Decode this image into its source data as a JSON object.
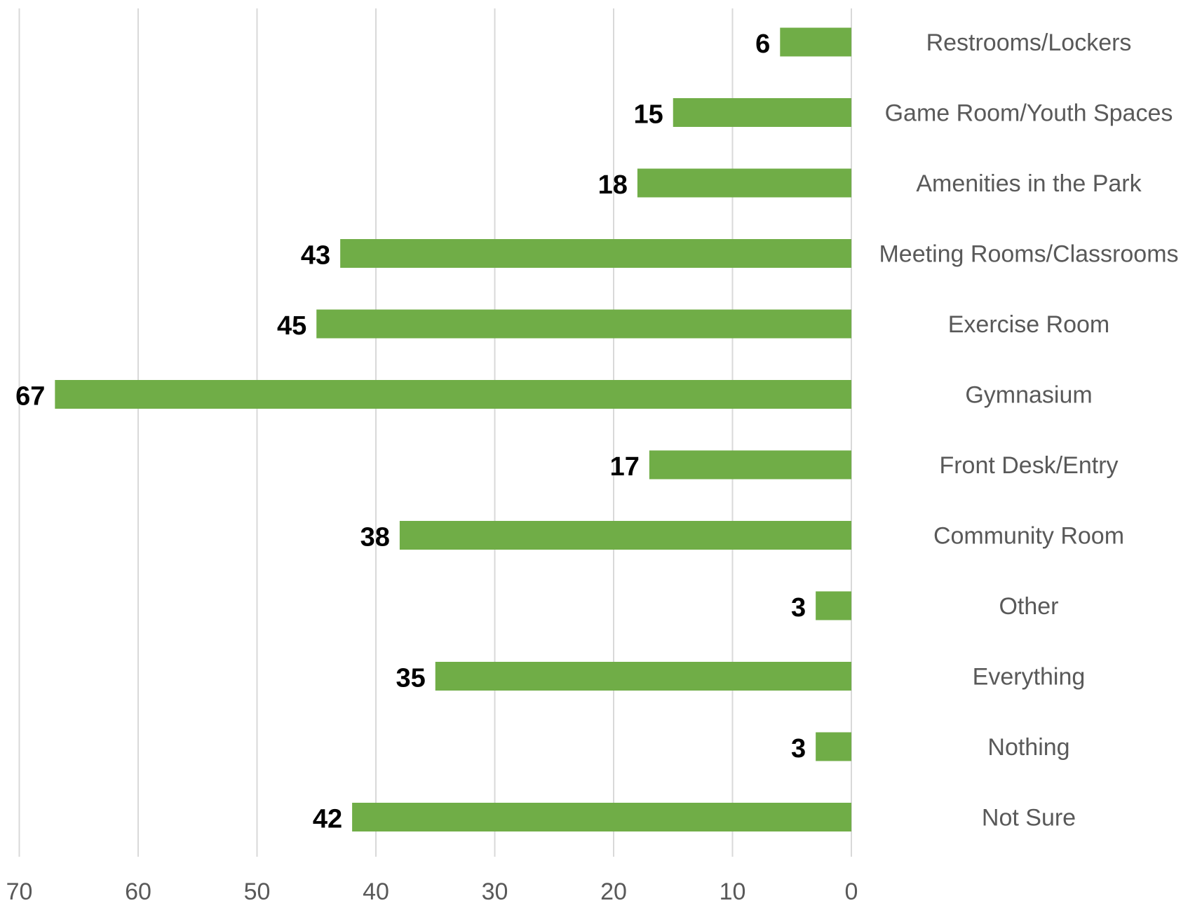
{
  "chart_data": {
    "type": "bar",
    "orientation": "horizontal",
    "x_direction": "reversed",
    "categories": [
      "Restrooms/Lockers",
      "Game Room/Youth Spaces",
      "Amenities in the Park",
      "Meeting Rooms/Classrooms",
      "Exercise Room",
      "Gymnasium",
      "Front Desk/Entry",
      "Community Room",
      "Other",
      "Everything",
      "Nothing",
      "Not Sure"
    ],
    "values": [
      6,
      15,
      18,
      43,
      45,
      67,
      17,
      38,
      3,
      35,
      3,
      42
    ],
    "data_labels": [
      "6",
      "15",
      "18",
      "43",
      "45",
      "67",
      "17",
      "38",
      "3",
      "35",
      "3",
      "42"
    ],
    "xlim": [
      0,
      70
    ],
    "x_ticks": [
      70,
      60,
      50,
      40,
      30,
      20,
      10,
      0
    ],
    "x_tick_labels": [
      "70",
      "60",
      "50",
      "40",
      "30",
      "20",
      "10",
      "0"
    ],
    "xlabel": "",
    "ylabel": "",
    "title": "",
    "grid": "vertical",
    "legend": "none",
    "bar_color": "#70ad47",
    "grid_color": "#d9d9d9",
    "label_color": "#595959"
  }
}
